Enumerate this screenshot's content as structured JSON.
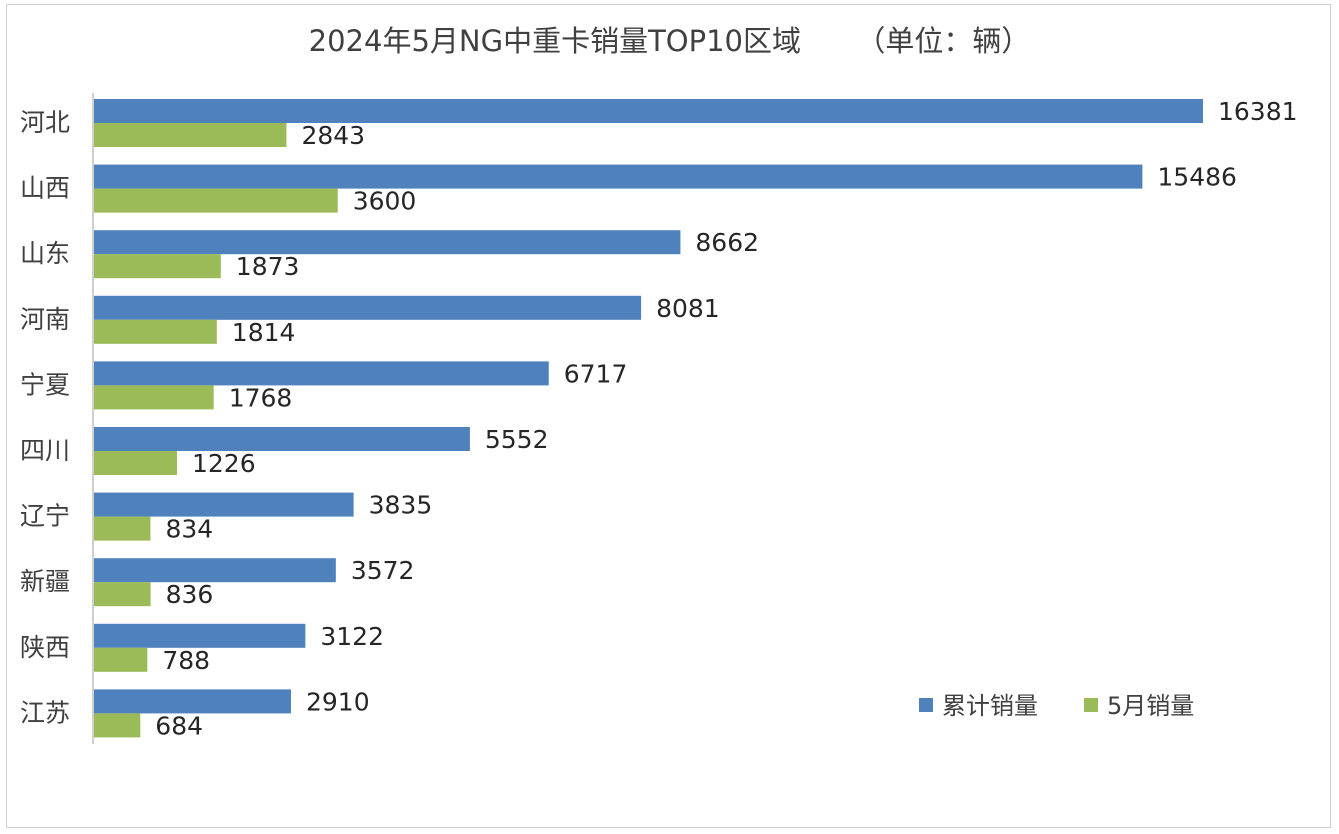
{
  "chart_data": {
    "type": "bar",
    "orientation": "horizontal",
    "title": "2024年5月NG中重卡销量TOP10区域      （单位：辆）",
    "categories": [
      "河北",
      "山西",
      "山东",
      "河南",
      "宁夏",
      "四川",
      "辽宁",
      "新疆",
      "陕西",
      "江苏"
    ],
    "series": [
      {
        "name": "累计销量",
        "color": "#4f81bd",
        "values": [
          16381,
          15486,
          8662,
          8081,
          6717,
          5552,
          3835,
          3572,
          3122,
          2910
        ]
      },
      {
        "name": "5月销量",
        "color": "#9bbb59",
        "values": [
          2843,
          3600,
          1873,
          1814,
          1768,
          1226,
          834,
          836,
          788,
          684
        ]
      }
    ],
    "xlim": [
      0,
      17000
    ],
    "grid": false,
    "data_labels": true,
    "legend_position": "bottom-right"
  }
}
